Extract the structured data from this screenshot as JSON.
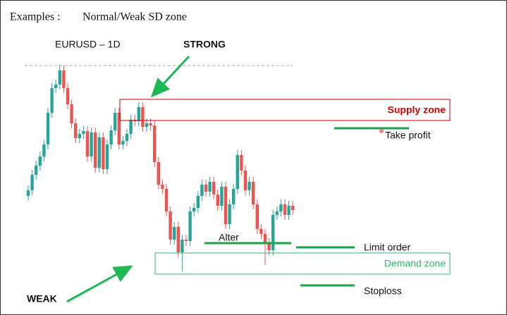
{
  "header": {
    "label": "Examples :",
    "title": "Normal/Weak SD zone"
  },
  "chart": {
    "symbol": "EURUSD – 1D"
  },
  "annotations": {
    "strong": "STRONG",
    "weak": "WEAK",
    "supply_zone": "Supply zone",
    "demand_zone": "Demand zone",
    "take_profit": "Take profit",
    "alter": "Alter",
    "limit_order": "Limit order",
    "stoploss": "Stoploss"
  }
}
